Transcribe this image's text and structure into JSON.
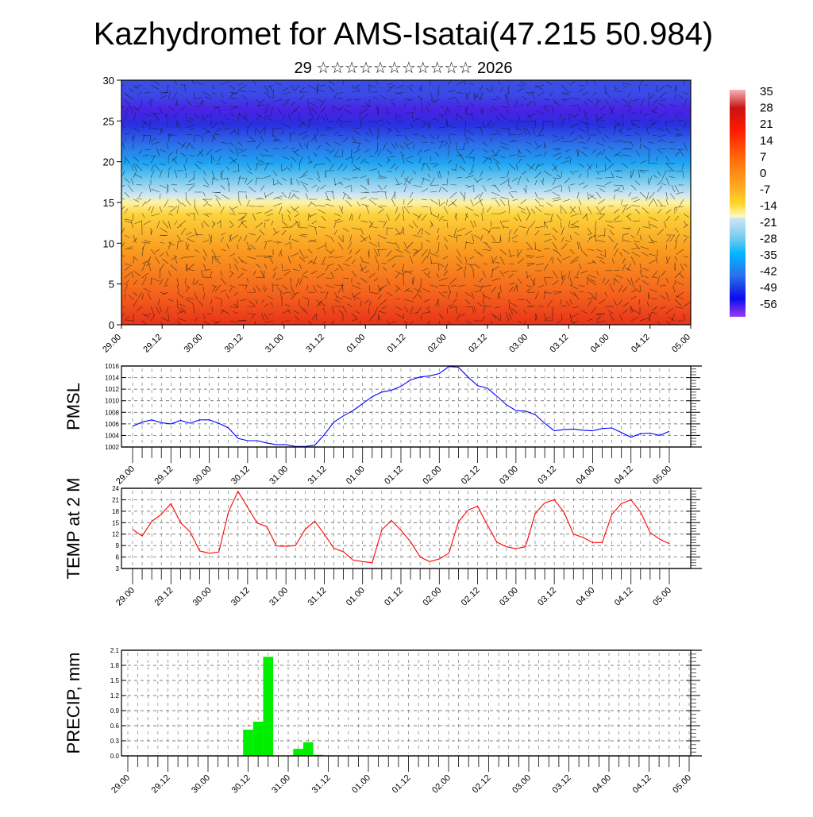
{
  "title": "Kazhydromet for AMS-Isatai(47.215 50.984)",
  "subtitle": "29 ☆☆☆☆☆☆☆☆☆☆☆ 2026",
  "chart_data": [
    {
      "type": "heatmap",
      "name": "vertical cross-section temperature with wind barbs",
      "y_ticks": [
        "0",
        "5",
        "10",
        "15",
        "20",
        "25",
        "30"
      ],
      "ylim": [
        0,
        30
      ],
      "x_ticks": [
        "29.00",
        "29.12",
        "30.00",
        "30.12",
        "31.00",
        "31.12",
        "01.00",
        "01.12",
        "02.00",
        "02.12",
        "03.00",
        "03.12",
        "04.00",
        "04.12",
        "05.00"
      ],
      "colorbar": {
        "labels": [
          "35",
          "28",
          "21",
          "14",
          "7",
          "0",
          "-7",
          "-14",
          "-21",
          "-28",
          "-35",
          "-42",
          "-49",
          "-56"
        ],
        "range": [
          -60,
          38
        ]
      }
    },
    {
      "type": "line",
      "ylabel": "PMSL",
      "color": "#0000ff",
      "ylim": [
        1002,
        1016
      ],
      "y_ticks": [
        "1002",
        "1004",
        "1006",
        "1008",
        "1010",
        "1012",
        "1014",
        "1016"
      ],
      "x_ticks": [
        "29.00",
        "29.12",
        "30.00",
        "30.12",
        "31.00",
        "31.12",
        "01.00",
        "01.12",
        "02.00",
        "02.12",
        "03.00",
        "03.12",
        "04.00",
        "04.12",
        "05.00"
      ],
      "step_hours": 3,
      "values": [
        1005.6,
        1006.3,
        1006.7,
        1006.2,
        1006.0,
        1006.6,
        1006.1,
        1006.7,
        1006.7,
        1006.1,
        1005.3,
        1003.5,
        1003.1,
        1003.1,
        1002.7,
        1002.4,
        1002.4,
        1002.1,
        1002.1,
        1002.3,
        1004.1,
        1006.3,
        1007.4,
        1008.3,
        1009.5,
        1010.7,
        1011.5,
        1011.8,
        1012.5,
        1013.6,
        1014.1,
        1014.3,
        1014.7,
        1015.9,
        1015.8,
        1014.1,
        1012.6,
        1012.2,
        1010.8,
        1009.3,
        1008.3,
        1008.2,
        1007.6,
        1006.1,
        1004.8,
        1005.0,
        1005.1,
        1004.9,
        1004.8,
        1005.2,
        1005.3,
        1004.5,
        1003.7,
        1004.3,
        1004.4,
        1004.0,
        1004.7
      ]
    },
    {
      "type": "line",
      "ylabel": "TEMP at 2 M",
      "color": "#ff0000",
      "ylim": [
        3,
        24
      ],
      "y_ticks": [
        "3",
        "6",
        "9",
        "12",
        "15",
        "18",
        "21",
        "24"
      ],
      "x_ticks": [
        "29.00",
        "29.12",
        "30.00",
        "30.12",
        "31.00",
        "31.12",
        "01.00",
        "01.12",
        "02.00",
        "02.12",
        "03.00",
        "03.12",
        "04.00",
        "04.12",
        "05.00"
      ],
      "step_hours": 3,
      "values": [
        13.2,
        11.5,
        15.3,
        17.2,
        20.0,
        15.0,
        12.6,
        7.6,
        7.0,
        7.3,
        17.8,
        23.2,
        19.0,
        14.9,
        14.0,
        8.9,
        8.8,
        9.0,
        13.2,
        15.4,
        12.0,
        8.3,
        7.4,
        5.2,
        4.8,
        4.5,
        13.1,
        15.6,
        13.0,
        10.0,
        6.0,
        4.8,
        5.5,
        7.0,
        15.2,
        18.3,
        19.3,
        14.5,
        9.9,
        8.7,
        8.2,
        8.7,
        17.3,
        20.2,
        21.0,
        17.8,
        12.0,
        11.1,
        9.8,
        9.8,
        17.1,
        20.0,
        21.0,
        17.8,
        12.4,
        10.7,
        9.5
      ]
    },
    {
      "type": "bar",
      "ylabel": "PRECIP, mm",
      "color": "#00ee00",
      "ylim": [
        0,
        2.1
      ],
      "y_ticks": [
        "0.0",
        "0.3",
        "0.6",
        "0.9",
        "1.2",
        "1.5",
        "1.8",
        "2.1"
      ],
      "x_ticks": [
        "29.00",
        "29.12",
        "30.00",
        "30.12",
        "31.00",
        "31.12",
        "01.00",
        "01.12",
        "02.00",
        "02.12",
        "03.00",
        "03.12",
        "04.00",
        "04.12",
        "05.00"
      ],
      "step_hours": 3,
      "values": [
        0,
        0,
        0,
        0.01,
        0,
        0,
        0,
        0,
        0,
        0,
        0,
        0,
        0.52,
        0.68,
        1.97,
        0,
        0,
        0.14,
        0.27,
        0.02,
        0,
        0,
        0,
        0,
        0,
        0,
        0,
        0,
        0,
        0,
        0,
        0,
        0,
        0,
        0,
        0,
        0,
        0,
        0,
        0,
        0,
        0,
        0,
        0,
        0,
        0,
        0,
        0,
        0,
        0,
        0,
        0,
        0,
        0,
        0,
        0,
        0
      ]
    }
  ]
}
